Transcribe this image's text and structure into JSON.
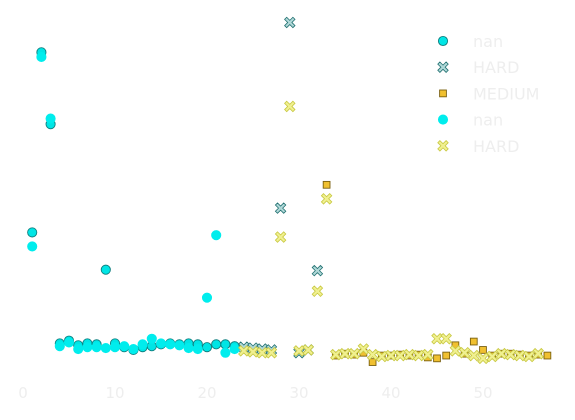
{
  "chart_data": {
    "type": "scatter",
    "title": "",
    "xlabel": "",
    "ylabel": "",
    "xlim": [
      0,
      57
    ],
    "ylim": [
      0,
      41
    ],
    "x_ticks": [
      "0",
      "10",
      "20",
      "30",
      "40",
      "50"
    ],
    "x_tick_values": [
      0,
      10,
      20,
      30,
      40,
      50
    ],
    "grid": false,
    "legend_position": "top-right",
    "series": [
      {
        "name": "nan",
        "marker": "circle",
        "fill": "#00e5e5",
        "stroke": "#0f7f7f",
        "points": [
          [
            1,
            18.5
          ],
          [
            2,
            37.8
          ],
          [
            3,
            30.1
          ],
          [
            4,
            6.6
          ],
          [
            5,
            6.9
          ],
          [
            6,
            6.4
          ],
          [
            7,
            6.6
          ],
          [
            8,
            6.5
          ],
          [
            9,
            14.5
          ],
          [
            10,
            6.6
          ],
          [
            11,
            6.2
          ],
          [
            12,
            5.9
          ],
          [
            13,
            6.2
          ],
          [
            14,
            6.3
          ],
          [
            15,
            6.5
          ],
          [
            16,
            6.6
          ],
          [
            17,
            6.5
          ],
          [
            18,
            6.6
          ],
          [
            19,
            6.5
          ],
          [
            20,
            6.2
          ],
          [
            21,
            6.5
          ],
          [
            22,
            6.5
          ],
          [
            23,
            6.3
          ]
        ]
      },
      {
        "name": "HARD",
        "marker": "x",
        "fill": "#b0d8d8",
        "stroke": "#1f6f6f",
        "points": [
          [
            24,
            6.2
          ],
          [
            25,
            6.1
          ],
          [
            26,
            6.0
          ],
          [
            27,
            5.9
          ],
          [
            28,
            21.1
          ],
          [
            29,
            41.0
          ],
          [
            30,
            5.6
          ],
          [
            31,
            5.9
          ],
          [
            32,
            14.4
          ]
        ]
      },
      {
        "name": "MEDIUM",
        "marker": "square",
        "fill": "#f0c030",
        "stroke": "#7a6010",
        "points": [
          [
            33,
            23.6
          ],
          [
            34,
            5.3
          ],
          [
            35,
            5.5
          ],
          [
            36,
            5.4
          ],
          [
            37,
            5.6
          ],
          [
            38,
            4.6
          ],
          [
            39,
            5.3
          ],
          [
            40,
            5.3
          ],
          [
            41,
            5.4
          ],
          [
            42,
            5.3
          ],
          [
            43,
            5.4
          ],
          [
            44,
            5.1
          ],
          [
            45,
            5.0
          ],
          [
            46,
            5.3
          ],
          [
            47,
            6.4
          ],
          [
            48,
            5.5
          ],
          [
            49,
            6.8
          ],
          [
            50,
            5.9
          ],
          [
            51,
            5.3
          ],
          [
            52,
            5.5
          ],
          [
            53,
            5.5
          ],
          [
            54,
            5.4
          ],
          [
            55,
            5.3
          ],
          [
            56,
            5.4
          ],
          [
            57,
            5.3
          ]
        ]
      },
      {
        "name": "nan",
        "marker": "circle",
        "fill": "#00eded",
        "stroke": "#00eded",
        "points": [
          [
            1,
            17.0
          ],
          [
            2,
            37.3
          ],
          [
            3,
            30.7
          ],
          [
            4,
            6.3
          ],
          [
            5,
            6.7
          ],
          [
            6,
            6.0
          ],
          [
            7,
            6.2
          ],
          [
            8,
            6.2
          ],
          [
            9,
            6.1
          ],
          [
            10,
            6.2
          ],
          [
            11,
            6.3
          ],
          [
            12,
            6.0
          ],
          [
            13,
            6.5
          ],
          [
            14,
            7.1
          ],
          [
            15,
            6.6
          ],
          [
            16,
            6.5
          ],
          [
            17,
            6.4
          ],
          [
            18,
            6.1
          ],
          [
            19,
            6.0
          ],
          [
            20,
            11.5
          ],
          [
            21,
            18.2
          ],
          [
            22,
            5.6
          ],
          [
            23,
            6.0
          ]
        ]
      },
      {
        "name": "HARD",
        "marker": "x",
        "fill": "#f0f090",
        "stroke": "#c8c840",
        "points": [
          [
            24,
            5.8
          ],
          [
            25,
            5.7
          ],
          [
            26,
            5.6
          ],
          [
            27,
            5.6
          ],
          [
            28,
            18.0
          ],
          [
            29,
            32.0
          ],
          [
            30,
            5.8
          ],
          [
            31,
            5.9
          ],
          [
            32,
            12.2
          ],
          [
            33,
            22.1
          ],
          [
            34,
            5.4
          ],
          [
            35,
            5.5
          ],
          [
            36,
            5.5
          ],
          [
            37,
            6.0
          ],
          [
            38,
            5.4
          ],
          [
            39,
            5.2
          ],
          [
            40,
            5.3
          ],
          [
            41,
            5.3
          ],
          [
            42,
            5.4
          ],
          [
            43,
            5.3
          ],
          [
            44,
            5.4
          ],
          [
            45,
            7.1
          ],
          [
            46,
            7.1
          ],
          [
            47,
            5.8
          ],
          [
            48,
            5.6
          ],
          [
            49,
            5.3
          ],
          [
            50,
            5.0
          ],
          [
            51,
            5.2
          ],
          [
            52,
            5.5
          ],
          [
            53,
            5.4
          ],
          [
            54,
            5.3
          ],
          [
            55,
            5.2
          ],
          [
            56,
            5.5
          ]
        ]
      }
    ]
  }
}
